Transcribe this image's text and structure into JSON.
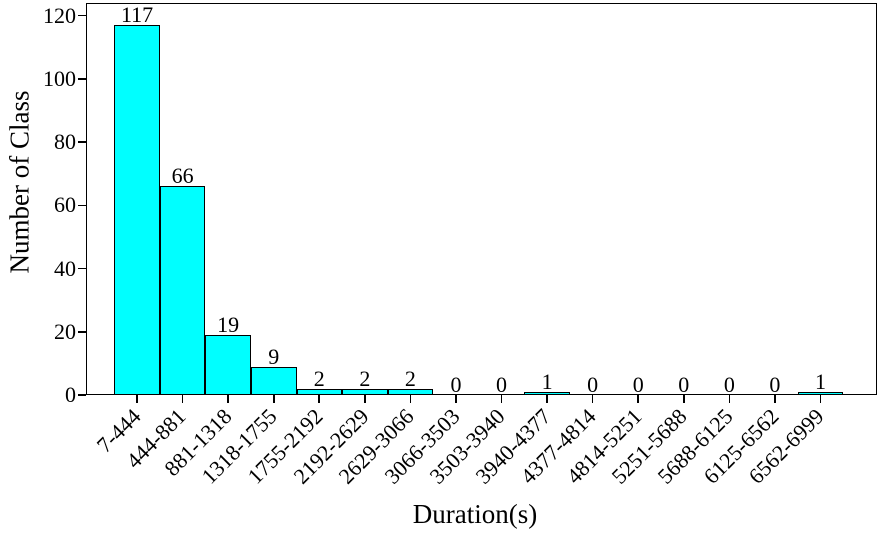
{
  "chart_data": {
    "type": "bar",
    "title": "",
    "xlabel": "Duration(s)",
    "ylabel": "Number of Class",
    "categories": [
      "7-444",
      "444-881",
      "881-1318",
      "1318-1755",
      "1755-2192",
      "2192-2629",
      "2629-3066",
      "3066-3503",
      "3503-3940",
      "3940-4377",
      "4377-4814",
      "4814-5251",
      "5251-5688",
      "5688-6125",
      "6125-6562",
      "6562-6999"
    ],
    "values": [
      117,
      66,
      19,
      9,
      2,
      2,
      2,
      0,
      0,
      1,
      0,
      0,
      0,
      0,
      0,
      1
    ],
    "value_labels_shown": true,
    "yticks": [
      0,
      20,
      40,
      60,
      80,
      100,
      120
    ],
    "ylim": [
      0,
      124
    ],
    "xlim": [
      -1.12,
      16.24
    ],
    "bar_width_units": 1.0,
    "xtick_rotation_deg": 45,
    "grid": false,
    "legend": false,
    "bar_color": "#00ffff",
    "bar_edge_color": "#000000",
    "axis_color": "#000000",
    "text_color": "#000000",
    "background_color": "#ffffff"
  }
}
